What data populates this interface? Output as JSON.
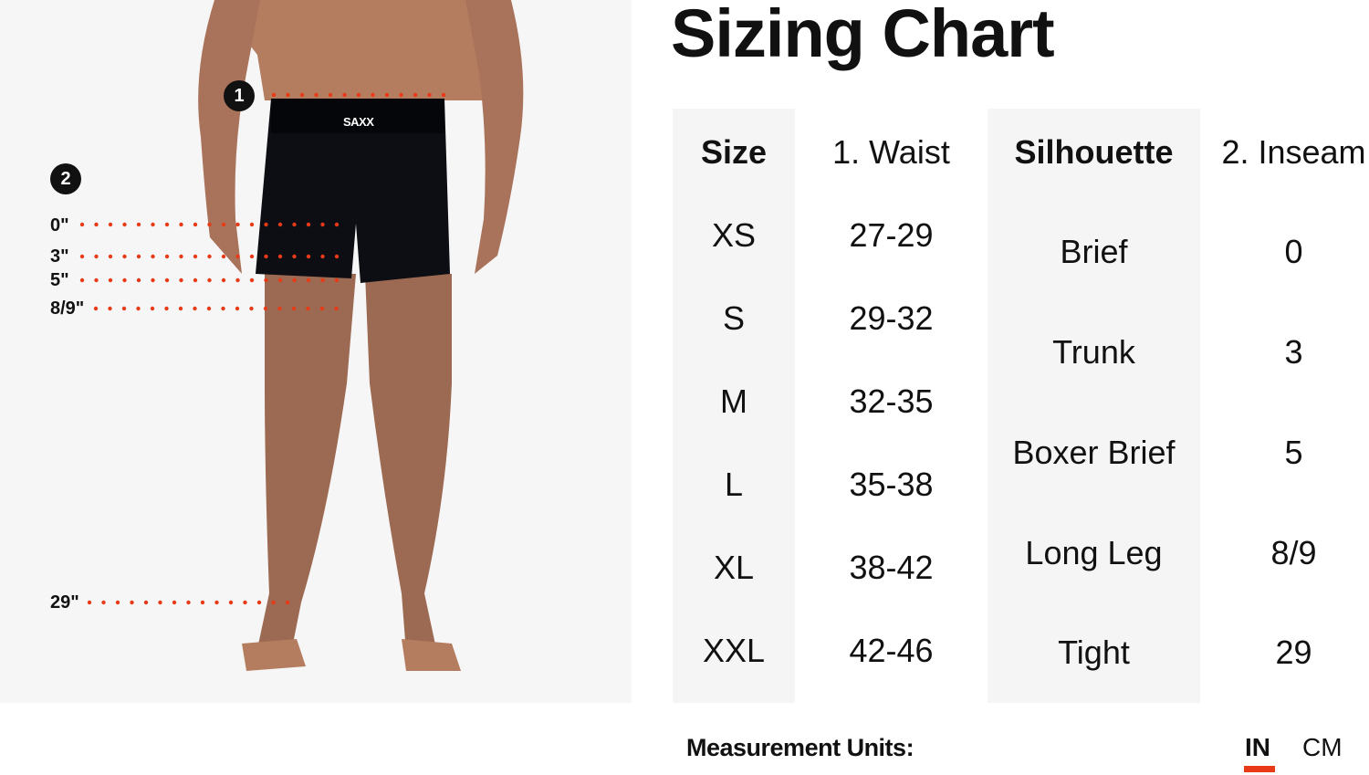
{
  "title": "Sizing Chart",
  "figure": {
    "brand_logo": "SAXX",
    "markers": [
      "1",
      "2"
    ],
    "inseam_labels": [
      "0\"",
      "3\"",
      "5\"",
      "8/9\"",
      "29\""
    ],
    "dot_color": "#e83a17"
  },
  "size_table": {
    "headers": [
      "Size",
      "1. Waist"
    ],
    "rows": [
      [
        "XS",
        "27-29"
      ],
      [
        "S",
        "29-32"
      ],
      [
        "M",
        "32-35"
      ],
      [
        "L",
        "35-38"
      ],
      [
        "XL",
        "38-42"
      ],
      [
        "XXL",
        "42-46"
      ]
    ]
  },
  "silhouette_table": {
    "headers": [
      "Silhouette",
      "2. Inseam"
    ],
    "rows": [
      [
        "Brief",
        "0"
      ],
      [
        "Trunk",
        "3"
      ],
      [
        "Boxer Brief",
        "5"
      ],
      [
        "Long Leg",
        "8/9"
      ],
      [
        "Tight",
        "29"
      ]
    ]
  },
  "units": {
    "label": "Measurement Units:",
    "options": [
      "IN",
      "CM"
    ],
    "selected": "IN",
    "accent": "#e83a17"
  }
}
